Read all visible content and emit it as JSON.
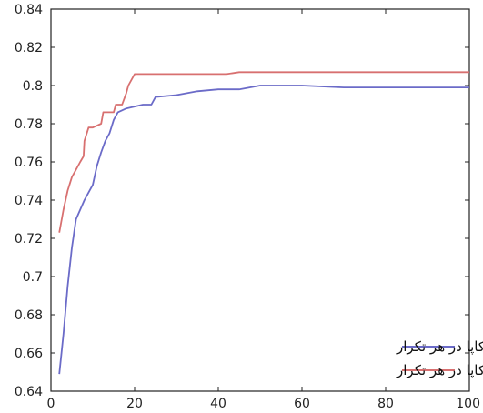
{
  "chart_data": {
    "type": "line",
    "title": "",
    "xlabel": "",
    "ylabel": "",
    "xlim": [
      0,
      100
    ],
    "ylim": [
      0.64,
      0.84
    ],
    "x_ticks": [
      0,
      20,
      40,
      60,
      80,
      100
    ],
    "y_ticks": [
      0.64,
      0.66,
      0.68,
      0.7,
      0.72,
      0.74,
      0.76,
      0.78,
      0.8,
      0.82,
      0.84
    ],
    "x_tick_labels": [
      "0",
      "20",
      "40",
      "60",
      "80",
      "100"
    ],
    "y_tick_labels": [
      "0.64",
      "0.66",
      "0.68",
      "0.7",
      "0.72",
      "0.74",
      "0.76",
      "0.78",
      "0.8",
      "0.82",
      "0.84"
    ],
    "grid": false,
    "legend_position": "bottom-right",
    "series": [
      {
        "name": "میانگین کاپا در هر تکرار",
        "color": "#6b6bc8",
        "x": [
          2,
          3,
          4,
          5,
          6,
          7,
          8,
          9,
          10,
          11,
          12,
          13,
          14,
          15,
          16,
          17,
          18,
          20,
          22,
          24,
          25,
          30,
          35,
          40,
          45,
          50,
          55,
          60,
          70,
          80,
          90,
          100
        ],
        "y": [
          0.649,
          0.67,
          0.695,
          0.715,
          0.73,
          0.735,
          0.74,
          0.744,
          0.748,
          0.758,
          0.765,
          0.771,
          0.775,
          0.782,
          0.786,
          0.787,
          0.788,
          0.789,
          0.79,
          0.79,
          0.794,
          0.795,
          0.797,
          0.798,
          0.798,
          0.8,
          0.8,
          0.8,
          0.799,
          0.799,
          0.799,
          0.799
        ]
      },
      {
        "name": "ماکزیمم کاپا در هر تکرار",
        "color": "#d87070",
        "x": [
          2,
          3,
          4,
          5,
          6,
          7,
          7.8,
          8,
          9,
          10,
          12,
          12.5,
          13,
          15,
          15.5,
          17,
          18,
          18.5,
          20,
          25,
          30,
          35,
          40,
          42,
          45,
          50,
          60,
          70,
          80,
          90,
          100
        ],
        "y": [
          0.723,
          0.735,
          0.745,
          0.752,
          0.756,
          0.76,
          0.763,
          0.771,
          0.778,
          0.778,
          0.78,
          0.786,
          0.786,
          0.786,
          0.79,
          0.79,
          0.796,
          0.8,
          0.806,
          0.806,
          0.806,
          0.806,
          0.806,
          0.806,
          0.807,
          0.807,
          0.807,
          0.807,
          0.807,
          0.807,
          0.807
        ]
      }
    ]
  }
}
